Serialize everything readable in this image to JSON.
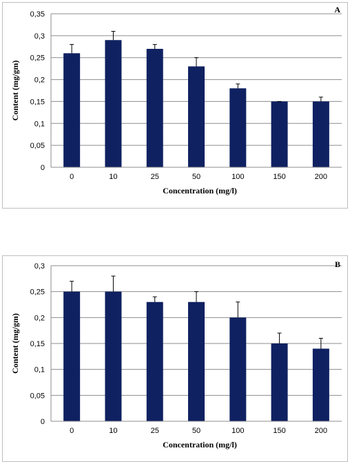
{
  "chart_data": [
    {
      "type": "bar",
      "panel_label": "A",
      "categories": [
        "0",
        "10",
        "25",
        "50",
        "100",
        "150",
        "200"
      ],
      "values": [
        0.26,
        0.29,
        0.27,
        0.23,
        0.18,
        0.15,
        0.15
      ],
      "errors": [
        0.02,
        0.02,
        0.01,
        0.02,
        0.01,
        0.0,
        0.01
      ],
      "xlabel": "Concentration (mg/l)",
      "ylabel": "Content (mg/gm)",
      "ylim": [
        0,
        0.35
      ],
      "yticks": [
        0,
        0.05,
        0.1,
        0.15,
        0.2,
        0.25,
        0.3,
        0.35
      ],
      "ytick_labels": [
        "0",
        "0,05",
        "0,1",
        "0,15",
        "0,2",
        "0,25",
        "0,3",
        "0,35"
      ],
      "grid": true,
      "bar_color": "#0f2161"
    },
    {
      "type": "bar",
      "panel_label": "B",
      "categories": [
        "0",
        "10",
        "25",
        "50",
        "100",
        "150",
        "200"
      ],
      "values": [
        0.25,
        0.25,
        0.23,
        0.23,
        0.2,
        0.15,
        0.14
      ],
      "errors": [
        0.02,
        0.03,
        0.01,
        0.02,
        0.03,
        0.02,
        0.02
      ],
      "xlabel": "Concentration (mg/l)",
      "ylabel": "Content (mg/gm)",
      "ylim": [
        0,
        0.3
      ],
      "yticks": [
        0,
        0.05,
        0.1,
        0.15,
        0.2,
        0.25,
        0.3
      ],
      "ytick_labels": [
        "0",
        "0,05",
        "0,1",
        "0,15",
        "0,2",
        "0,25",
        "0,3"
      ],
      "grid": true,
      "bar_color": "#0f2161"
    }
  ]
}
